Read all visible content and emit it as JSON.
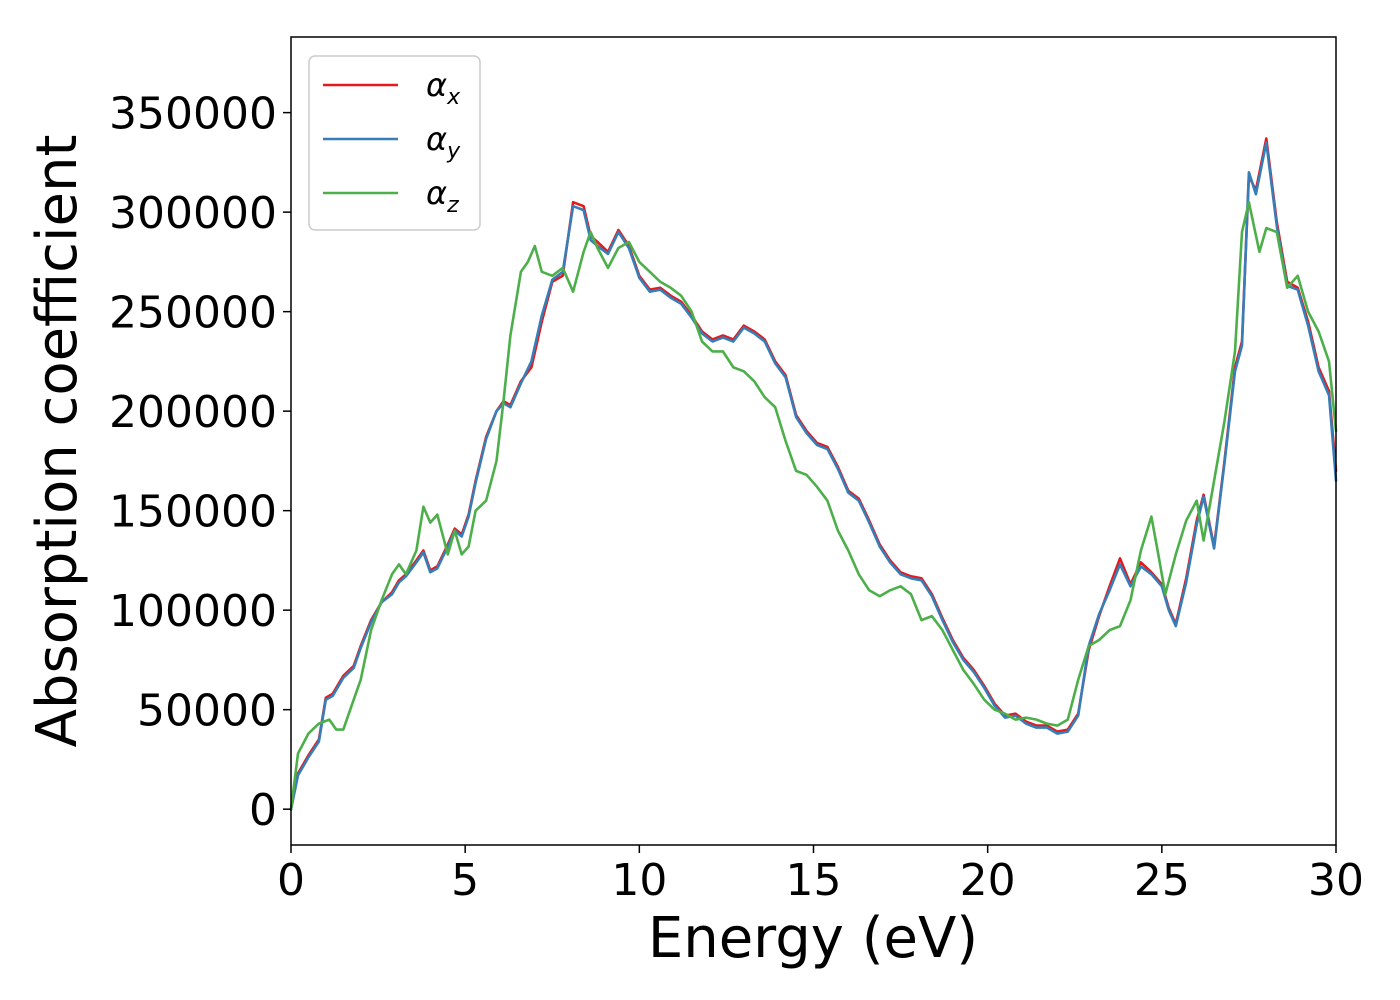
{
  "chart_data": {
    "type": "line",
    "xlabel": "Energy (eV)",
    "ylabel": "Absorption coefficient",
    "xlim": [
      0,
      30
    ],
    "ylim": [
      -18000,
      388000
    ],
    "xticks": [
      0,
      5,
      10,
      15,
      20,
      25,
      30
    ],
    "yticks": [
      0,
      50000,
      100000,
      150000,
      200000,
      250000,
      300000,
      350000
    ],
    "grid": false,
    "legend_position": "top-left",
    "series": [
      {
        "name": "α_x",
        "label_main": "α",
        "label_sub": "x",
        "color": "#e41a1c",
        "x": [
          0,
          0.2,
          0.5,
          0.8,
          1.0,
          1.2,
          1.5,
          1.8,
          2.0,
          2.3,
          2.6,
          2.9,
          3.1,
          3.3,
          3.6,
          3.8,
          4.0,
          4.2,
          4.5,
          4.7,
          4.9,
          5.1,
          5.3,
          5.6,
          5.9,
          6.1,
          6.3,
          6.6,
          6.9,
          7.2,
          7.5,
          7.8,
          8.1,
          8.4,
          8.6,
          8.8,
          9.1,
          9.4,
          9.7,
          10.0,
          10.3,
          10.6,
          10.9,
          11.2,
          11.5,
          11.8,
          12.1,
          12.4,
          12.7,
          13.0,
          13.3,
          13.6,
          13.9,
          14.2,
          14.5,
          14.8,
          15.1,
          15.4,
          15.7,
          16.0,
          16.3,
          16.6,
          16.9,
          17.2,
          17.5,
          17.8,
          18.1,
          18.4,
          18.7,
          19.0,
          19.3,
          19.6,
          19.9,
          20.2,
          20.5,
          20.8,
          21.1,
          21.4,
          21.7,
          22.0,
          22.3,
          22.6,
          22.9,
          23.2,
          23.5,
          23.8,
          24.1,
          24.4,
          24.7,
          25.0,
          25.2,
          25.4,
          25.7,
          26.0,
          26.2,
          26.5,
          26.8,
          27.1,
          27.3,
          27.5,
          27.7,
          28.0,
          28.3,
          28.6,
          28.9,
          29.2,
          29.5,
          29.8,
          30.0
        ],
        "values": [
          0,
          18000,
          27000,
          35000,
          56000,
          58000,
          67000,
          72000,
          82000,
          95000,
          104000,
          109000,
          115000,
          118000,
          125000,
          130000,
          120000,
          122000,
          133000,
          141000,
          138000,
          148000,
          165000,
          187000,
          200000,
          205000,
          203000,
          215000,
          222000,
          245000,
          265000,
          268000,
          305000,
          303000,
          288000,
          285000,
          280000,
          291000,
          283000,
          268000,
          261000,
          262000,
          258000,
          255000,
          248000,
          240000,
          236000,
          238000,
          236000,
          243000,
          240000,
          236000,
          225000,
          218000,
          198000,
          190000,
          184000,
          182000,
          172000,
          160000,
          156000,
          145000,
          133000,
          125000,
          119000,
          117000,
          116000,
          108000,
          96000,
          85000,
          76000,
          70000,
          62000,
          53000,
          47000,
          48000,
          44000,
          42000,
          42000,
          39000,
          40000,
          48000,
          80000,
          97000,
          112000,
          126000,
          113000,
          124000,
          119000,
          113000,
          101000,
          93000,
          116000,
          145000,
          158000,
          132000,
          175000,
          222000,
          235000,
          318000,
          311000,
          337000,
          295000,
          265000,
          262000,
          245000,
          222000,
          210000,
          170000
        ]
      },
      {
        "name": "α_y",
        "label_main": "α",
        "label_sub": "y",
        "color": "#377eb8",
        "x": [
          0,
          0.2,
          0.5,
          0.8,
          1.0,
          1.2,
          1.5,
          1.8,
          2.0,
          2.3,
          2.6,
          2.9,
          3.1,
          3.3,
          3.6,
          3.8,
          4.0,
          4.2,
          4.5,
          4.7,
          4.9,
          5.1,
          5.3,
          5.6,
          5.9,
          6.1,
          6.3,
          6.6,
          6.9,
          7.2,
          7.5,
          7.8,
          8.1,
          8.4,
          8.6,
          8.8,
          9.1,
          9.4,
          9.7,
          10.0,
          10.3,
          10.6,
          10.9,
          11.2,
          11.5,
          11.8,
          12.1,
          12.4,
          12.7,
          13.0,
          13.3,
          13.6,
          13.9,
          14.2,
          14.5,
          14.8,
          15.1,
          15.4,
          15.7,
          16.0,
          16.3,
          16.6,
          16.9,
          17.2,
          17.5,
          17.8,
          18.1,
          18.4,
          18.7,
          19.0,
          19.3,
          19.6,
          19.9,
          20.2,
          20.5,
          20.8,
          21.1,
          21.4,
          21.7,
          22.0,
          22.3,
          22.6,
          22.9,
          23.2,
          23.5,
          23.8,
          24.1,
          24.4,
          24.7,
          25.0,
          25.2,
          25.4,
          25.7,
          26.0,
          26.2,
          26.5,
          26.8,
          27.1,
          27.3,
          27.5,
          27.7,
          28.0,
          28.3,
          28.6,
          28.9,
          29.2,
          29.5,
          29.8,
          30.0
        ],
        "values": [
          0,
          17000,
          26000,
          34000,
          55000,
          57000,
          66000,
          71000,
          81000,
          94000,
          104000,
          108000,
          114000,
          117000,
          124000,
          129000,
          119000,
          121000,
          132000,
          140000,
          137000,
          147000,
          164000,
          186000,
          200000,
          204000,
          202000,
          214000,
          225000,
          248000,
          266000,
          270000,
          303000,
          301000,
          286000,
          283000,
          279000,
          290000,
          282000,
          267000,
          260000,
          261000,
          257000,
          254000,
          247000,
          239000,
          235000,
          237000,
          235000,
          242000,
          239000,
          235000,
          224000,
          217000,
          197000,
          189000,
          183000,
          181000,
          171000,
          159000,
          155000,
          144000,
          132000,
          124000,
          118000,
          116000,
          115000,
          107000,
          95000,
          84000,
          75000,
          69000,
          61000,
          52000,
          46000,
          47000,
          43000,
          41000,
          41000,
          38000,
          39000,
          47000,
          82000,
          98000,
          110000,
          123000,
          112000,
          122000,
          118000,
          112000,
          100000,
          92000,
          114000,
          143000,
          157000,
          131000,
          174000,
          220000,
          233000,
          320000,
          309000,
          335000,
          293000,
          263000,
          261000,
          243000,
          220000,
          208000,
          165000
        ]
      },
      {
        "name": "α_z",
        "label_main": "α",
        "label_sub": "z",
        "color": "#4daf4a",
        "x": [
          0,
          0.2,
          0.5,
          0.8,
          1.1,
          1.3,
          1.5,
          1.8,
          2.0,
          2.3,
          2.6,
          2.9,
          3.1,
          3.3,
          3.6,
          3.8,
          4.0,
          4.2,
          4.5,
          4.7,
          4.9,
          5.1,
          5.3,
          5.6,
          5.9,
          6.1,
          6.3,
          6.6,
          6.8,
          7.0,
          7.2,
          7.5,
          7.8,
          8.1,
          8.4,
          8.6,
          8.8,
          9.1,
          9.4,
          9.7,
          10.0,
          10.3,
          10.6,
          10.9,
          11.2,
          11.5,
          11.8,
          12.1,
          12.4,
          12.7,
          13.0,
          13.3,
          13.6,
          13.9,
          14.2,
          14.5,
          14.8,
          15.1,
          15.4,
          15.7,
          16.0,
          16.3,
          16.6,
          16.9,
          17.2,
          17.5,
          17.8,
          18.1,
          18.4,
          18.7,
          19.0,
          19.3,
          19.6,
          19.9,
          20.2,
          20.5,
          20.8,
          21.1,
          21.4,
          21.7,
          22.0,
          22.3,
          22.6,
          22.9,
          23.2,
          23.5,
          23.8,
          24.1,
          24.4,
          24.7,
          24.9,
          25.1,
          25.4,
          25.7,
          26.0,
          26.2,
          26.5,
          26.8,
          27.1,
          27.3,
          27.5,
          27.8,
          28.0,
          28.3,
          28.6,
          28.9,
          29.2,
          29.5,
          29.8,
          30.0
        ],
        "values": [
          0,
          28000,
          38000,
          43000,
          45000,
          40000,
          40000,
          55000,
          65000,
          90000,
          105000,
          118000,
          123000,
          118000,
          130000,
          152000,
          144000,
          148000,
          128000,
          140000,
          128000,
          132000,
          150000,
          155000,
          175000,
          205000,
          238000,
          270000,
          275000,
          283000,
          270000,
          268000,
          272000,
          260000,
          280000,
          290000,
          282000,
          272000,
          282000,
          285000,
          275000,
          270000,
          265000,
          262000,
          258000,
          250000,
          235000,
          230000,
          230000,
          222000,
          220000,
          215000,
          207000,
          202000,
          185000,
          170000,
          168000,
          162000,
          155000,
          140000,
          130000,
          118000,
          110000,
          107000,
          110000,
          112000,
          108000,
          95000,
          97000,
          90000,
          80000,
          70000,
          63000,
          55000,
          50000,
          48000,
          45000,
          46000,
          45000,
          43000,
          42000,
          45000,
          65000,
          82000,
          85000,
          90000,
          92000,
          105000,
          130000,
          147000,
          128000,
          108000,
          128000,
          145000,
          155000,
          135000,
          165000,
          195000,
          230000,
          290000,
          305000,
          280000,
          292000,
          290000,
          262000,
          268000,
          250000,
          240000,
          225000,
          190000
        ]
      }
    ]
  }
}
